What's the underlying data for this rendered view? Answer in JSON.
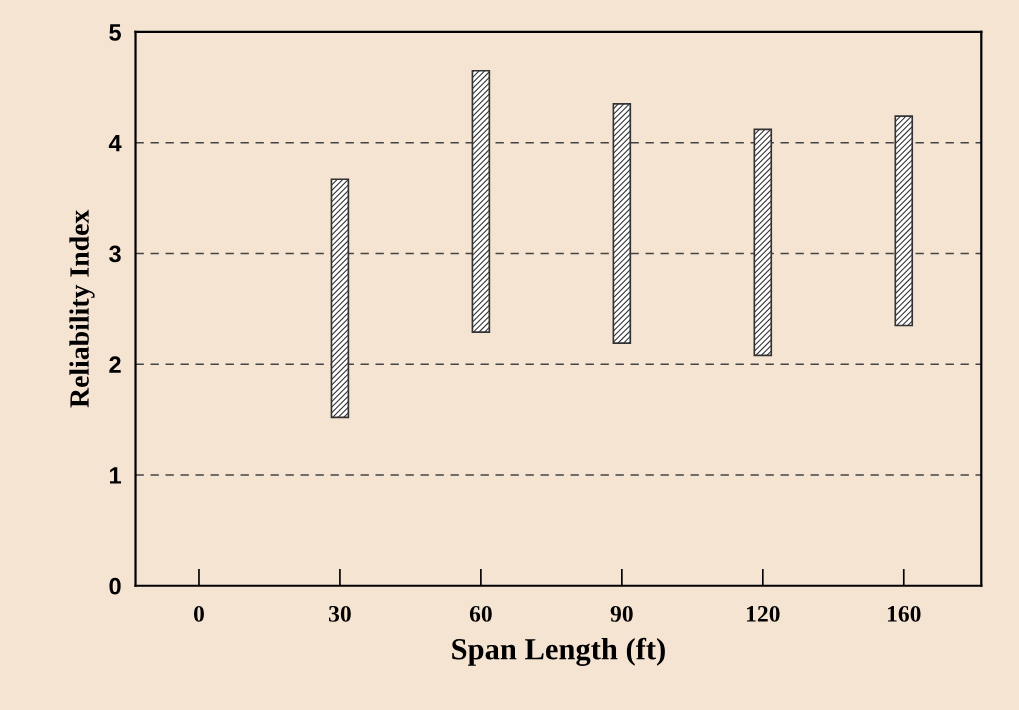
{
  "chart_data": {
    "type": "bar",
    "xlabel": "Span Length (ft)",
    "ylabel": "Reliability Index",
    "categories": [
      "0",
      "30",
      "60",
      "90",
      "120",
      "160"
    ],
    "series": [
      {
        "color": "#333333",
        "base": [
          null,
          1.52,
          2.29,
          2.19,
          2.08,
          2.35
        ],
        "values": [
          null,
          2.15,
          2.36,
          2.16,
          2.04,
          1.89
        ]
      }
    ],
    "ylim": [
      0,
      5
    ],
    "yticks": [
      0,
      1,
      2,
      3,
      4,
      5
    ],
    "grid": "y"
  }
}
